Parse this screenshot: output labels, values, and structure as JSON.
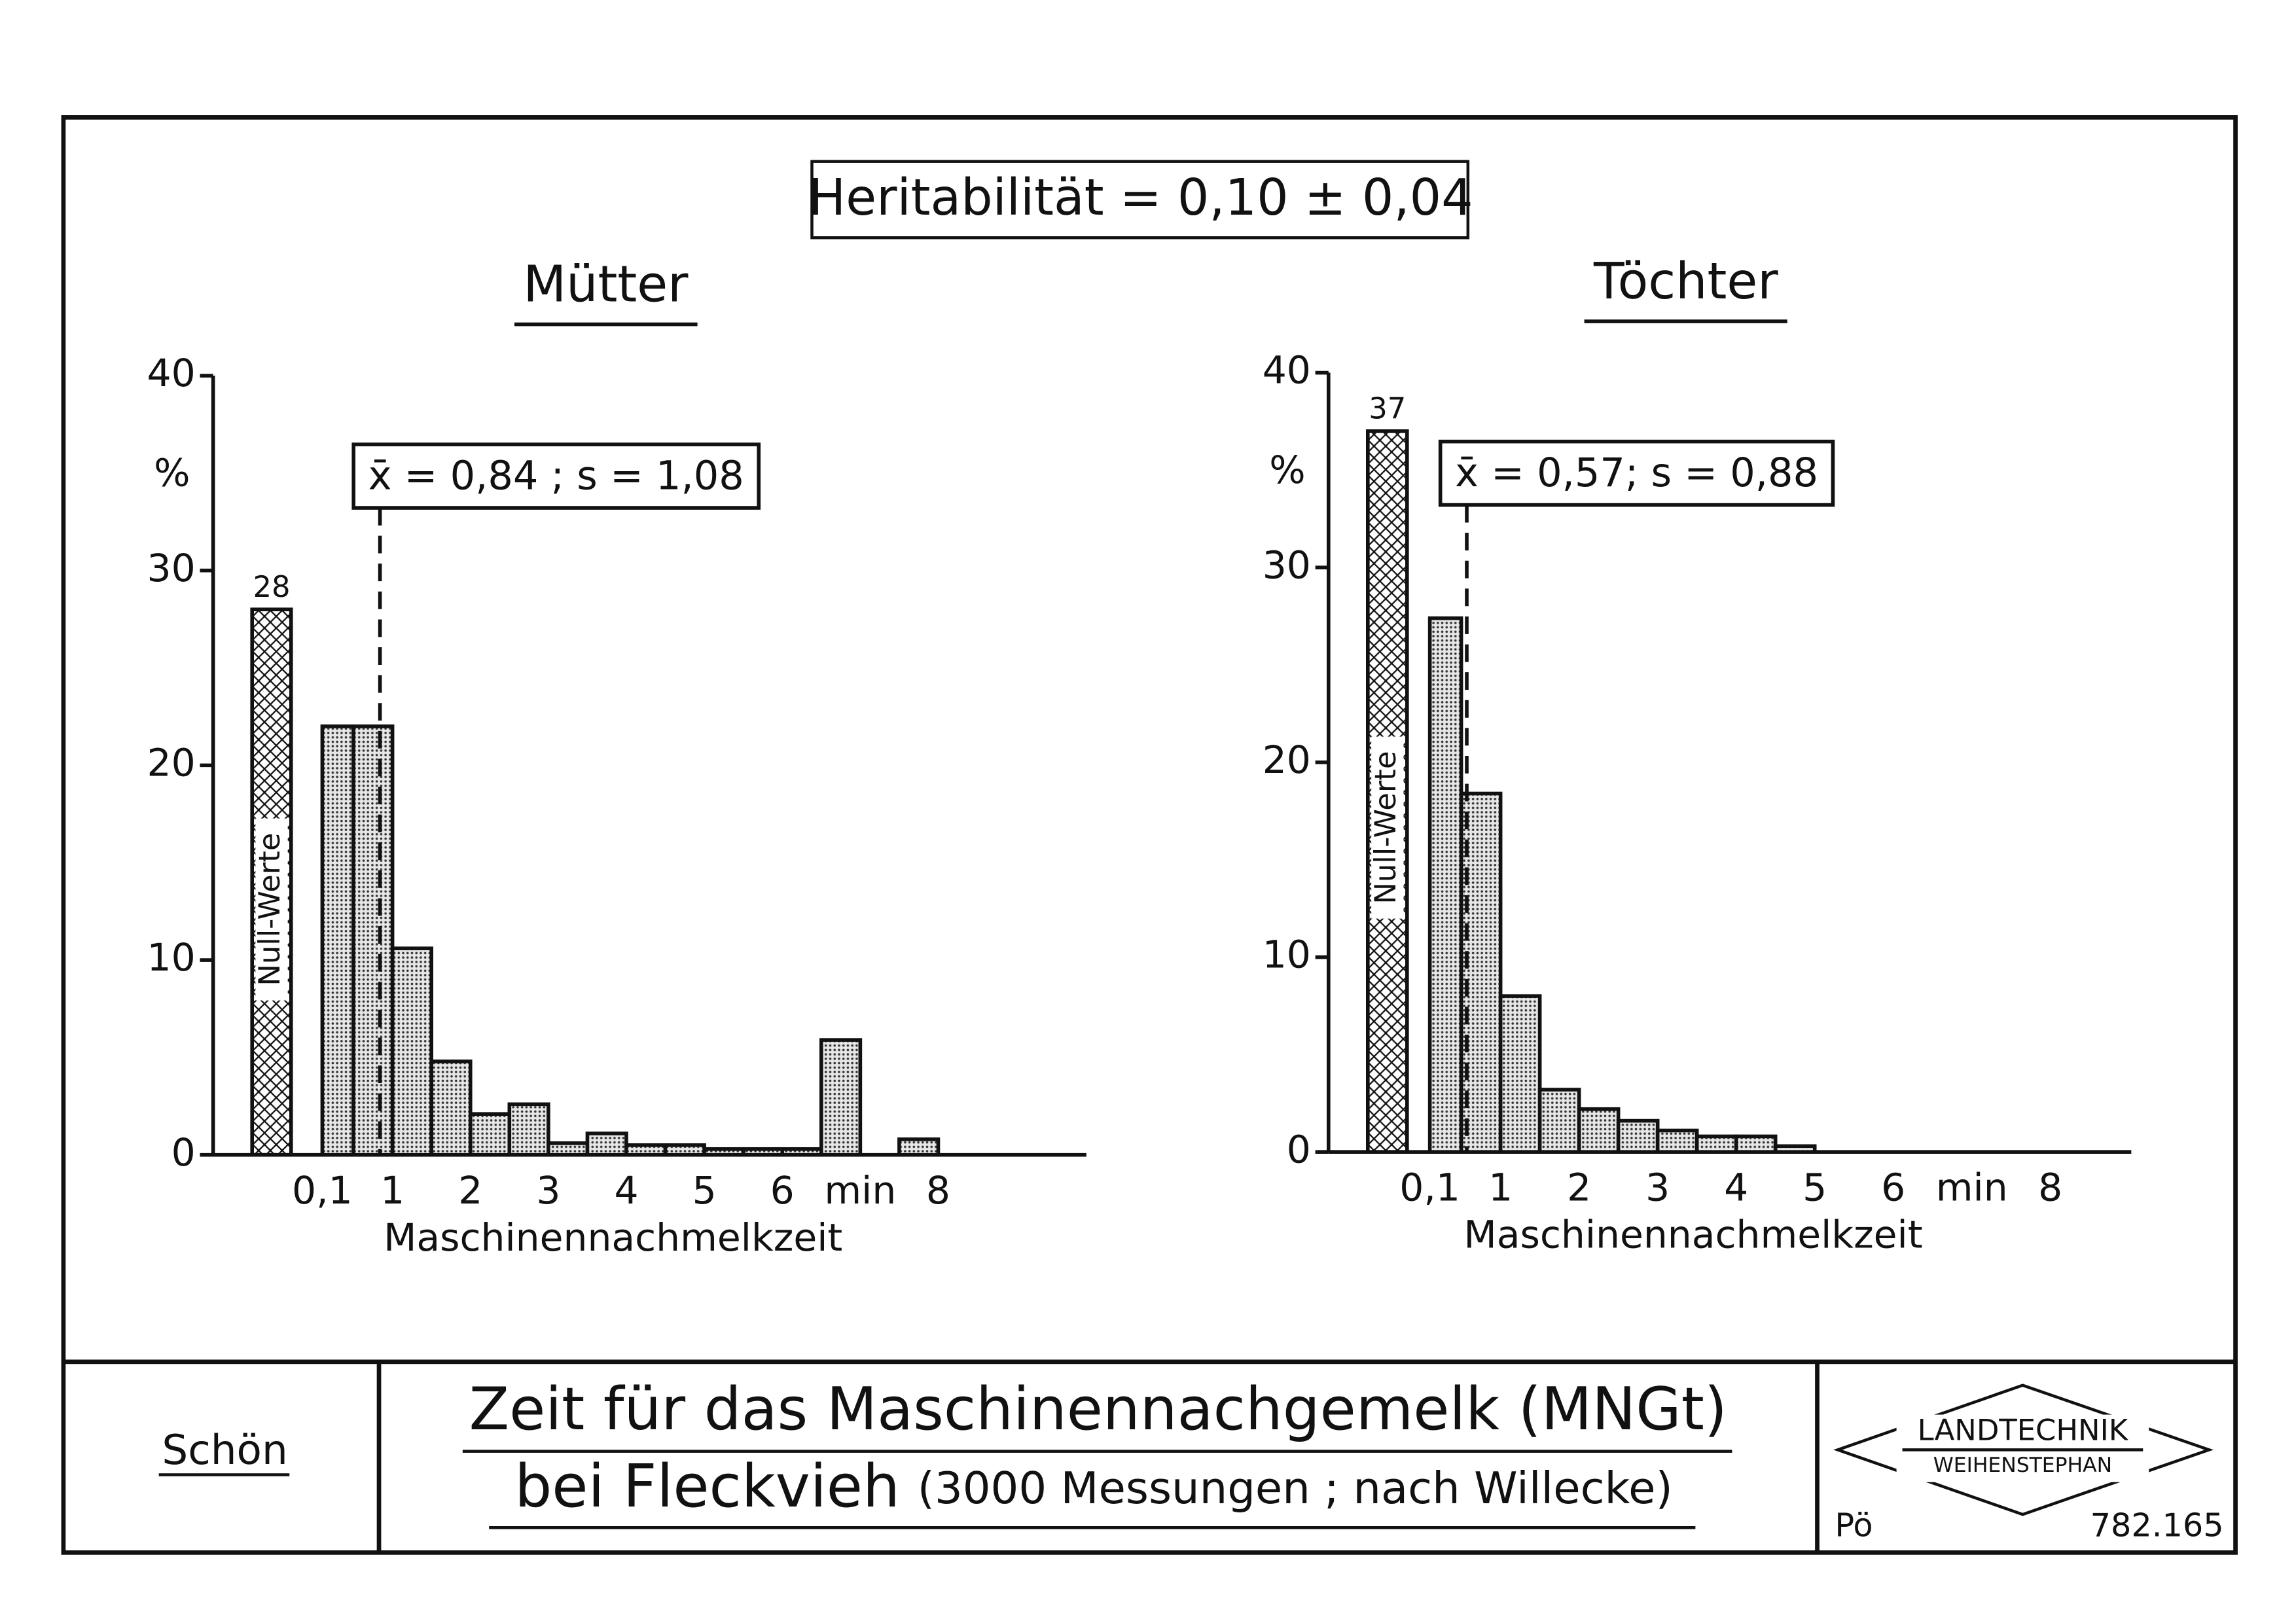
{
  "header": {
    "heritability": "Heritabilität = 0,10 ± 0,04"
  },
  "chart_data": [
    {
      "type": "histogram",
      "title": "Mütter",
      "xlabel": "Maschinennachmelkzeit",
      "ylabel": "%",
      "bins": [
        0.1,
        0.5,
        1,
        1.5,
        2,
        2.5,
        3,
        3.5,
        4,
        4.5,
        5,
        5.5,
        6,
        6.5,
        7,
        7.5,
        8
      ],
      "values": [
        22,
        22,
        10.6,
        4.8,
        2.1,
        2.6,
        0.6,
        1.1,
        0.5,
        0.5,
        0.3,
        0.3,
        0.3,
        5.9,
        0,
        0.8
      ],
      "null_label": "Null-Werte",
      "null_value": 28,
      "mean": 0.84,
      "annotation": "x̄ = 0,84 ; s = 1,08",
      "color": "#111111",
      "xlim": [
        -1.3,
        9.9
      ],
      "ylim": [
        0,
        40
      ],
      "xticks": [
        {
          "value": 0.1,
          "label": "0,1"
        },
        1,
        2,
        3,
        4,
        5,
        6,
        {
          "value": 7,
          "label": "min"
        },
        8
      ],
      "yticks": [
        0,
        10,
        20,
        30,
        40
      ]
    },
    {
      "type": "histogram",
      "title": "Töchter",
      "xlabel": "Maschinennachmelkzeit",
      "ylabel": "%",
      "bins": [
        0.1,
        0.5,
        1,
        1.5,
        2,
        2.5,
        3,
        3.5,
        4,
        4.5,
        5
      ],
      "values": [
        27.4,
        18.4,
        8,
        3.2,
        2.2,
        1.6,
        1.1,
        0.8,
        0.8,
        0.3
      ],
      "null_label": "Null-Werte",
      "null_value": 37,
      "mean": 0.57,
      "annotation": "x̄ = 0,57; s = 0,88",
      "color": "#111111",
      "xlim": [
        -1.19,
        9.03
      ],
      "ylim": [
        0,
        40
      ],
      "xticks": [
        {
          "value": 0.1,
          "label": "0,1"
        },
        1,
        2,
        3,
        4,
        5,
        6,
        {
          "value": 7,
          "label": "min"
        },
        8
      ],
      "yticks": [
        0,
        10,
        20,
        30,
        40
      ]
    }
  ],
  "footer": {
    "author": "Schön",
    "title_line1": "Zeit für das Maschinennachgemelk (MNGt)",
    "title_line2": "bei Fleckvieh",
    "title_line2_note": "(3000 Messungen ; nach Willecke)",
    "logo_top": "LANDTECHNIK",
    "logo_bottom": "WEIHENSTEPHAN",
    "initials": "Pö",
    "number": "782.165"
  }
}
